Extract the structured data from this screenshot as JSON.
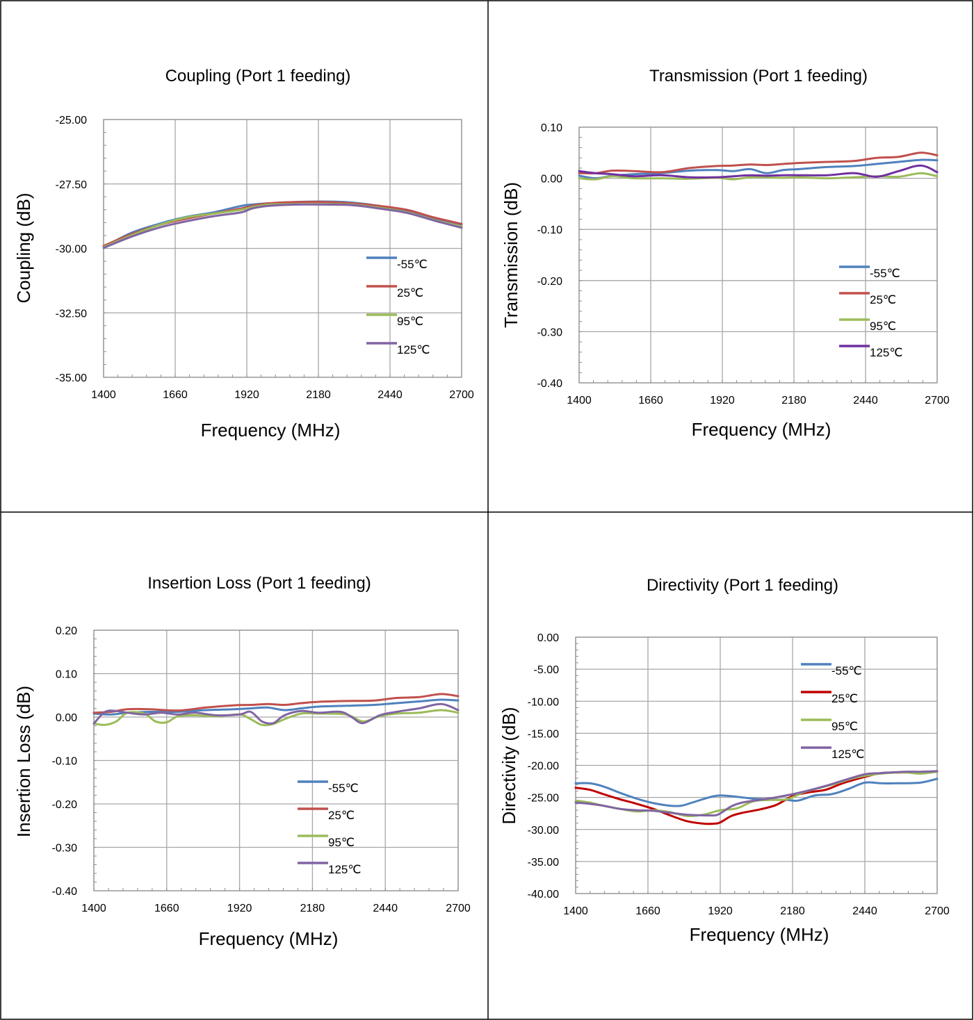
{
  "chart_data": [
    {
      "type": "line",
      "title": "Coupling (Port 1 feeding)",
      "xlabel": "Frequency (MHz)",
      "ylabel": "Coupling (dB)",
      "xlim": [
        1400,
        2700
      ],
      "ylim": [
        -35,
        -25
      ],
      "xticks": [
        1400,
        1660,
        1920,
        2180,
        2440,
        2700
      ],
      "yticks": [
        -25,
        -27.5,
        -30,
        -32.5,
        -35
      ],
      "xtick_labels": [
        "1400",
        "1660",
        "1920",
        "2180",
        "2440",
        "2700"
      ],
      "ytick_labels": [
        "-25.00",
        "-27.50",
        "-30.00",
        "-32.50",
        "-35.00"
      ],
      "legend": "right-center",
      "grid": true,
      "series": [
        {
          "name": "-55℃",
          "color": "#4f81bd",
          "x": [
            1400,
            1500,
            1600,
            1700,
            1800,
            1900,
            1940,
            2000,
            2100,
            2200,
            2300,
            2400,
            2500,
            2600,
            2700
          ],
          "y": [
            -29.95,
            -29.4,
            -29.05,
            -28.78,
            -28.6,
            -28.35,
            -28.3,
            -28.25,
            -28.2,
            -28.18,
            -28.22,
            -28.35,
            -28.55,
            -28.85,
            -29.1
          ]
        },
        {
          "name": "25℃",
          "color": "#c0504d",
          "x": [
            1400,
            1500,
            1600,
            1700,
            1800,
            1900,
            1940,
            2000,
            2100,
            2200,
            2300,
            2400,
            2500,
            2600,
            2700
          ],
          "y": [
            -29.9,
            -29.45,
            -29.1,
            -28.85,
            -28.65,
            -28.45,
            -28.35,
            -28.25,
            -28.2,
            -28.2,
            -28.25,
            -28.35,
            -28.5,
            -28.8,
            -29.05
          ]
        },
        {
          "name": "95℃",
          "color": "#9bbb59",
          "x": [
            1400,
            1500,
            1600,
            1700,
            1800,
            1900,
            1940,
            2000,
            2100,
            2200,
            2300,
            2400,
            2500,
            2600,
            2700
          ],
          "y": [
            -29.95,
            -29.5,
            -29.1,
            -28.8,
            -28.65,
            -28.5,
            -28.4,
            -28.3,
            -28.28,
            -28.28,
            -28.3,
            -28.42,
            -28.6,
            -28.9,
            -29.15
          ]
        },
        {
          "name": "125℃",
          "color": "#8064a2",
          "x": [
            1400,
            1500,
            1600,
            1700,
            1800,
            1900,
            1940,
            2000,
            2100,
            2200,
            2300,
            2400,
            2500,
            2600,
            2700
          ],
          "y": [
            -29.98,
            -29.55,
            -29.2,
            -28.95,
            -28.75,
            -28.6,
            -28.45,
            -28.35,
            -28.3,
            -28.3,
            -28.32,
            -28.45,
            -28.62,
            -28.92,
            -29.2
          ]
        }
      ]
    },
    {
      "type": "line",
      "title": "Transmission (Port 1 feeding)",
      "xlabel": "Frequency (MHz)",
      "ylabel": "Transmission (dB)",
      "xlim": [
        1400,
        2700
      ],
      "ylim": [
        -0.4,
        0.1
      ],
      "xticks": [
        1400,
        1660,
        1920,
        2180,
        2440,
        2700
      ],
      "yticks": [
        0.1,
        0,
        -0.1,
        -0.2,
        -0.3,
        -0.4
      ],
      "xtick_labels": [
        "1400",
        "1660",
        "1920",
        "2180",
        "2440",
        "2700"
      ],
      "ytick_labels": [
        "0.10",
        "0.00",
        "-0.10",
        "-0.20",
        "-0.30",
        "-0.40"
      ],
      "legend": "right-center",
      "grid": true,
      "series": [
        {
          "name": "-55℃",
          "color": "#4f81bd",
          "x": [
            1400,
            1460,
            1520,
            1600,
            1700,
            1800,
            1900,
            1960,
            2020,
            2080,
            2140,
            2200,
            2300,
            2400,
            2480,
            2560,
            2640,
            2700
          ],
          "y": [
            0.005,
            0.0,
            0.005,
            0.008,
            0.01,
            0.015,
            0.016,
            0.014,
            0.018,
            0.01,
            0.016,
            0.018,
            0.022,
            0.024,
            0.028,
            0.032,
            0.036,
            0.035
          ]
        },
        {
          "name": "25℃",
          "color": "#c0504d",
          "x": [
            1400,
            1460,
            1520,
            1600,
            1700,
            1800,
            1900,
            1960,
            2020,
            2080,
            2140,
            2200,
            2300,
            2400,
            2480,
            2560,
            2640,
            2700
          ],
          "y": [
            0.01,
            0.01,
            0.015,
            0.014,
            0.012,
            0.02,
            0.024,
            0.025,
            0.027,
            0.026,
            0.028,
            0.03,
            0.032,
            0.034,
            0.04,
            0.042,
            0.05,
            0.045
          ]
        },
        {
          "name": "95℃",
          "color": "#9bbb59",
          "x": [
            1400,
            1460,
            1520,
            1600,
            1700,
            1800,
            1900,
            1960,
            2020,
            2080,
            2140,
            2200,
            2300,
            2400,
            2480,
            2560,
            2640,
            2700
          ],
          "y": [
            0.0,
            -0.002,
            0.004,
            0.0,
            0.0,
            -0.001,
            0.001,
            -0.002,
            0.002,
            0.002,
            0.001,
            0.002,
            0.0,
            0.002,
            0.004,
            0.003,
            0.01,
            0.004
          ]
        },
        {
          "name": "125℃",
          "color": "#7030a0",
          "x": [
            1400,
            1460,
            1520,
            1600,
            1700,
            1800,
            1900,
            1960,
            2020,
            2080,
            2140,
            2200,
            2300,
            2400,
            2480,
            2560,
            2640,
            2700
          ],
          "y": [
            0.014,
            0.01,
            0.008,
            0.004,
            0.006,
            0.002,
            0.002,
            0.004,
            0.006,
            0.005,
            0.006,
            0.006,
            0.006,
            0.01,
            0.003,
            0.014,
            0.025,
            0.012
          ]
        }
      ]
    },
    {
      "type": "line",
      "title": "Insertion Loss (Port 1 feeding)",
      "xlabel": "Frequency (MHz)",
      "ylabel": "Insertion Loss (dB)",
      "xlim": [
        1400,
        2700
      ],
      "ylim": [
        -0.4,
        0.2
      ],
      "xticks": [
        1400,
        1660,
        1920,
        2180,
        2440,
        2700
      ],
      "yticks": [
        0.2,
        0.1,
        0,
        -0.1,
        -0.2,
        -0.3,
        -0.4
      ],
      "xtick_labels": [
        "1400",
        "1660",
        "1920",
        "2180",
        "2440",
        "2700"
      ],
      "ytick_labels": [
        "0.20",
        "0.10",
        "0.00",
        "-0.10",
        "-0.20",
        "-0.30",
        "-0.40"
      ],
      "legend": "right-center",
      "grid": true,
      "series": [
        {
          "name": "-55℃",
          "color": "#4f81bd",
          "x": [
            1400,
            1460,
            1520,
            1600,
            1700,
            1800,
            1900,
            1960,
            2020,
            2080,
            2140,
            2200,
            2300,
            2400,
            2480,
            2560,
            2640,
            2700
          ],
          "y": [
            0.008,
            0.006,
            0.01,
            0.012,
            0.012,
            0.016,
            0.018,
            0.02,
            0.022,
            0.016,
            0.02,
            0.024,
            0.026,
            0.028,
            0.032,
            0.036,
            0.04,
            0.038
          ]
        },
        {
          "name": "25℃",
          "color": "#c0504d",
          "x": [
            1400,
            1460,
            1520,
            1600,
            1700,
            1800,
            1900,
            1960,
            2020,
            2080,
            2140,
            2200,
            2300,
            2400,
            2480,
            2560,
            2640,
            2700
          ],
          "y": [
            0.01,
            0.012,
            0.018,
            0.018,
            0.015,
            0.022,
            0.027,
            0.028,
            0.03,
            0.028,
            0.032,
            0.035,
            0.037,
            0.038,
            0.044,
            0.046,
            0.053,
            0.048
          ]
        },
        {
          "name": "95℃",
          "color": "#9bbb59",
          "x": [
            1400,
            1440,
            1480,
            1520,
            1580,
            1620,
            1660,
            1700,
            1760,
            1840,
            1920,
            1960,
            2000,
            2040,
            2080,
            2140,
            2200,
            2300,
            2360,
            2420,
            2480,
            2560,
            2640,
            2700
          ],
          "y": [
            -0.015,
            -0.018,
            -0.01,
            0.01,
            0.008,
            -0.01,
            -0.012,
            0.002,
            0.004,
            0.002,
            0.006,
            -0.005,
            -0.018,
            -0.016,
            -0.005,
            0.008,
            0.008,
            0.006,
            -0.01,
            0.002,
            0.008,
            0.01,
            0.016,
            0.01
          ]
        },
        {
          "name": "125℃",
          "color": "#8064a2",
          "x": [
            1400,
            1440,
            1480,
            1520,
            1580,
            1640,
            1700,
            1760,
            1840,
            1920,
            1960,
            2000,
            2040,
            2080,
            2140,
            2200,
            2280,
            2320,
            2360,
            2420,
            2480,
            2560,
            2640,
            2700
          ],
          "y": [
            -0.015,
            0.012,
            0.014,
            0.01,
            0.006,
            0.01,
            0.006,
            0.01,
            0.004,
            0.006,
            0.012,
            -0.01,
            -0.014,
            0.004,
            0.014,
            0.01,
            0.012,
            0.0,
            -0.014,
            0.004,
            0.012,
            0.02,
            0.03,
            0.016
          ]
        }
      ]
    },
    {
      "type": "line",
      "title": "Directivity (Port 1 feeding)",
      "xlabel": "Frequency (MHz)",
      "ylabel": "Directivity (dB)",
      "xlim": [
        1400,
        2700
      ],
      "ylim": [
        -40,
        0
      ],
      "xticks": [
        1400,
        1660,
        1920,
        2180,
        2440,
        2700
      ],
      "yticks": [
        0,
        -5,
        -10,
        -15,
        -20,
        -25,
        -30,
        -35,
        -40
      ],
      "xtick_labels": [
        "1400",
        "1660",
        "1920",
        "2180",
        "2440",
        "2700"
      ],
      "ytick_labels": [
        "0.00",
        "-5.00",
        "-10.00",
        "-15.00",
        "-20.00",
        "-25.00",
        "-30.00",
        "-35.00",
        "-40.00"
      ],
      "legend": "top-right",
      "grid": true,
      "series": [
        {
          "name": "-55℃",
          "color": "#4f81bd",
          "x": [
            1400,
            1450,
            1500,
            1560,
            1620,
            1680,
            1740,
            1780,
            1820,
            1880,
            1920,
            1980,
            2040,
            2100,
            2160,
            2200,
            2260,
            2320,
            2380,
            2440,
            2500,
            2560,
            2640,
            2700
          ],
          "y": [
            -22.8,
            -22.8,
            -23.3,
            -24.3,
            -25.2,
            -25.9,
            -26.3,
            -26.3,
            -25.8,
            -25.0,
            -24.7,
            -24.9,
            -25.2,
            -25.3,
            -25.4,
            -25.5,
            -24.7,
            -24.5,
            -23.7,
            -22.7,
            -22.8,
            -22.8,
            -22.7,
            -22.1
          ]
        },
        {
          "name": "25℃",
          "color": "#c00000",
          "x": [
            1400,
            1450,
            1500,
            1560,
            1620,
            1680,
            1740,
            1800,
            1860,
            1900,
            1920,
            1960,
            2000,
            2060,
            2120,
            2180,
            2240,
            2300,
            2360,
            2440,
            2500,
            2580,
            2640,
            2700
          ],
          "y": [
            -23.5,
            -23.8,
            -24.5,
            -25.3,
            -26.0,
            -26.8,
            -27.8,
            -28.7,
            -29.1,
            -29.1,
            -28.9,
            -27.9,
            -27.4,
            -26.9,
            -26.2,
            -24.8,
            -24.2,
            -23.8,
            -22.8,
            -21.8,
            -21.2,
            -21.1,
            -21.1,
            -21.0
          ]
        },
        {
          "name": "95℃",
          "color": "#9bbb59",
          "x": [
            1400,
            1450,
            1500,
            1560,
            1620,
            1680,
            1740,
            1800,
            1860,
            1920,
            1980,
            2040,
            2100,
            2160,
            2220,
            2280,
            2340,
            2400,
            2460,
            2520,
            2580,
            2640,
            2700
          ],
          "y": [
            -25.5,
            -25.8,
            -26.3,
            -26.8,
            -27.2,
            -27.0,
            -27.3,
            -27.9,
            -27.7,
            -27.0,
            -26.7,
            -25.6,
            -25.4,
            -25.3,
            -24.2,
            -23.5,
            -22.8,
            -22.0,
            -21.5,
            -21.2,
            -21.1,
            -21.3,
            -21.0
          ]
        },
        {
          "name": "125℃",
          "color": "#8064a2",
          "x": [
            1400,
            1450,
            1500,
            1560,
            1620,
            1680,
            1740,
            1800,
            1860,
            1900,
            1920,
            1960,
            2000,
            2060,
            2120,
            2180,
            2240,
            2300,
            2360,
            2440,
            2500,
            2580,
            2640,
            2700
          ],
          "y": [
            -25.8,
            -26.0,
            -26.3,
            -26.8,
            -27.0,
            -27.1,
            -27.4,
            -27.7,
            -27.8,
            -27.8,
            -27.5,
            -26.4,
            -25.8,
            -25.4,
            -25.0,
            -24.5,
            -23.9,
            -23.2,
            -22.4,
            -21.4,
            -21.2,
            -21.0,
            -21.0,
            -20.9
          ]
        }
      ]
    }
  ]
}
